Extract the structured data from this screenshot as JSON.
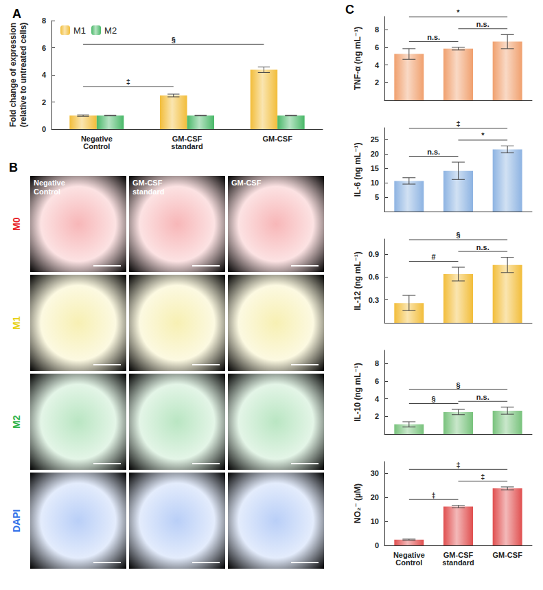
{
  "chart_data": [
    {
      "type": "bar",
      "title": "A",
      "y_label": "Fold change of expression\n(relative to untreated cells)",
      "categories": [
        "Negative\nControl",
        "GM-CSF\nstandard",
        "GM-CSF"
      ],
      "series": [
        {
          "name": "M1",
          "color": "#f2bd3a",
          "values": [
            1.0,
            2.48,
            4.38
          ],
          "errors": [
            0.05,
            0.1,
            0.2
          ]
        },
        {
          "name": "M2",
          "color": "#49b868",
          "values": [
            1.0,
            1.0,
            1.0
          ],
          "errors": [
            0.02,
            0.02,
            0.02
          ]
        }
      ],
      "ylim": [
        0,
        8
      ],
      "yticks": [
        0,
        2,
        4,
        6,
        8
      ],
      "grid": false,
      "legend": "top-left",
      "annotations": [
        {
          "from": 0,
          "to": 1,
          "text": "‡"
        },
        {
          "from": 0,
          "to": 2,
          "text": "§"
        }
      ]
    },
    {
      "type": "bar",
      "title": "C",
      "y_label": "TNF-α (ng mL⁻¹)",
      "categories": [
        "Negative\nControl",
        "GM-CSF\nstandard",
        "GM-CSF"
      ],
      "values": [
        5.25,
        5.85,
        6.65
      ],
      "errors": [
        0.6,
        0.15,
        0.8
      ],
      "color": "#f0a06e",
      "ylim": [
        0,
        9.5
      ],
      "yticks": [
        2,
        4,
        6,
        8
      ],
      "grid": false,
      "tick_labels": "y",
      "annotations": [
        {
          "from": 0,
          "to": 1,
          "text": "n.s."
        },
        {
          "from": 1,
          "to": 2,
          "text": "n.s."
        },
        {
          "from": 0,
          "to": 2,
          "text": "*"
        }
      ]
    },
    {
      "type": "bar",
      "y_label": "IL-6 (ng mL⁻¹)",
      "categories": [
        "Negative\nControl",
        "GM-CSF\nstandard",
        "GM-CSF"
      ],
      "values": [
        10.6,
        14.1,
        21.5
      ],
      "errors": [
        1.1,
        3.0,
        1.2
      ],
      "color": "#8db3e2",
      "ylim": [
        0,
        29
      ],
      "yticks": [
        5,
        10,
        15,
        20,
        25
      ],
      "grid": false,
      "tick_labels": "y",
      "annotations": [
        {
          "from": 0,
          "to": 1,
          "text": "n.s."
        },
        {
          "from": 1,
          "to": 2,
          "text": "*"
        },
        {
          "from": 0,
          "to": 2,
          "text": "‡"
        }
      ]
    },
    {
      "type": "bar",
      "y_label": "IL-12 (ng mL⁻¹)",
      "categories": [
        "Negative\nControl",
        "GM-CSF\nstandard",
        "GM-CSF"
      ],
      "values": [
        0.26,
        0.64,
        0.76
      ],
      "errors": [
        0.1,
        0.09,
        0.1
      ],
      "color": "#f2bd3a",
      "ylim": [
        0,
        1.1
      ],
      "yticks": [
        0.3,
        0.6,
        0.9
      ],
      "grid": false,
      "tick_labels": "y",
      "annotations": [
        {
          "from": 0,
          "to": 1,
          "text": "#"
        },
        {
          "from": 1,
          "to": 2,
          "text": "n.s."
        },
        {
          "from": 0,
          "to": 2,
          "text": "§"
        }
      ]
    },
    {
      "type": "bar",
      "y_label": "IL-10 (ng mL⁻¹)",
      "categories": [
        "Negative\nControl",
        "GM-CSF\nstandard",
        "GM-CSF"
      ],
      "values": [
        1.1,
        2.5,
        2.65
      ],
      "errors": [
        0.3,
        0.3,
        0.4
      ],
      "color": "#78c27c",
      "ylim": [
        0,
        9.5
      ],
      "yticks": [
        2,
        4,
        6,
        8
      ],
      "grid": false,
      "tick_labels": "y",
      "annotations": [
        {
          "from": 0,
          "to": 1,
          "text": "§"
        },
        {
          "from": 1,
          "to": 2,
          "text": "n.s."
        },
        {
          "from": 0,
          "to": 2,
          "text": "§"
        }
      ]
    },
    {
      "type": "bar",
      "y_label": "NO₂⁻ (µM)",
      "categories": [
        "Negative\nControl",
        "GM-CSF\nstandard",
        "GM-CSF"
      ],
      "values": [
        2.4,
        16.2,
        23.8
      ],
      "errors": [
        0.2,
        0.5,
        0.6
      ],
      "color": "#e04f4f",
      "ylim": [
        0,
        35
      ],
      "yticks": [
        0,
        10,
        20,
        30
      ],
      "grid": false,
      "annotations": [
        {
          "from": 0,
          "to": 1,
          "text": "‡"
        },
        {
          "from": 1,
          "to": 2,
          "text": "‡"
        },
        {
          "from": 0,
          "to": 2,
          "text": "‡"
        }
      ]
    }
  ],
  "image_panel": {
    "title": "B",
    "columns": [
      "Negative\nControl",
      "GM-CSF\nstandard",
      "GM-CSF"
    ],
    "rows": [
      {
        "label": "M0",
        "color": "#e8262a"
      },
      {
        "label": "M1",
        "color": "#e8d21d"
      },
      {
        "label": "M2",
        "color": "#2fb34a"
      },
      {
        "label": "DAPI",
        "color": "#2e6fe8"
      }
    ]
  }
}
